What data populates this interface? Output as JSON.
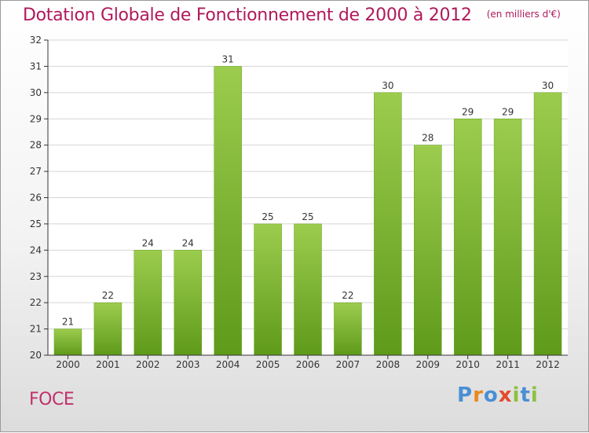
{
  "chart_data": {
    "type": "bar",
    "title": "Dotation Globale de Fonctionnement de 2000 à 2012",
    "unit_note": "(en milliers d'€)",
    "categories": [
      "2000",
      "2001",
      "2002",
      "2003",
      "2004",
      "2005",
      "2006",
      "2007",
      "2008",
      "2009",
      "2010",
      "2011",
      "2012"
    ],
    "values": [
      21,
      22,
      24,
      24,
      31,
      25,
      25,
      22,
      30,
      28,
      29,
      29,
      30
    ],
    "ylim": [
      20,
      32
    ],
    "yticks": [
      20,
      21,
      22,
      23,
      24,
      25,
      26,
      27,
      28,
      29,
      30,
      31,
      32
    ],
    "grid": true,
    "bar_color_top": "#9ccc4e",
    "bar_color_bottom": "#5f9a1a"
  },
  "place_name": "FOCE",
  "logo": {
    "text": "Proxiti",
    "letter_colors": [
      "#4a8fd4",
      "#e8891d",
      "#4a8fd4",
      "#e34b2b",
      "#8bc13f",
      "#4a8fd4",
      "#8bc13f"
    ]
  },
  "colors": {
    "title": "#b0195b",
    "place": "#c0306a",
    "grid": "#d5d5d5",
    "axis": "#333333"
  }
}
